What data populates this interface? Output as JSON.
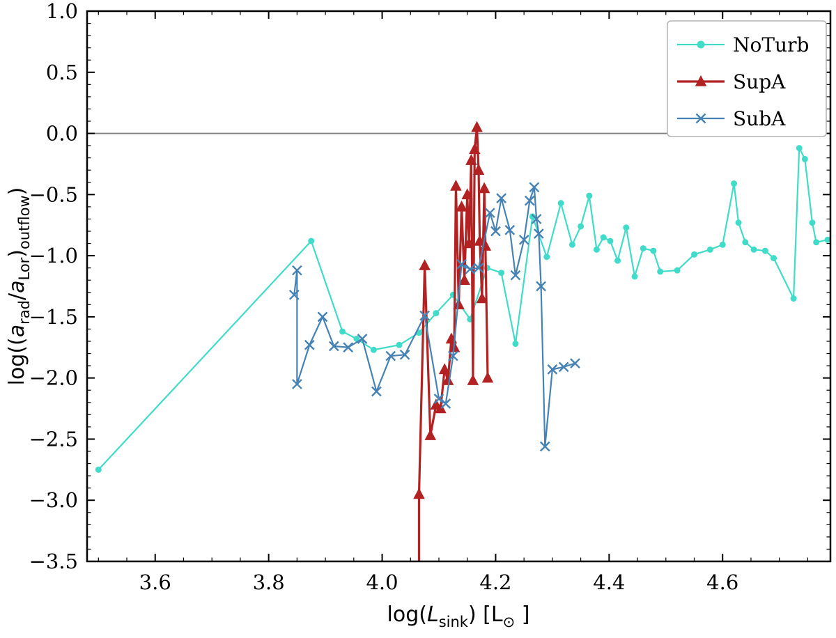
{
  "figure": {
    "background": "#ffffff",
    "frame_color": "#000000",
    "zero_line_color": "#808080"
  },
  "axes": {
    "x_label_parts": [
      "log(",
      "L",
      "sink",
      ") [L",
      "⊙",
      " ]"
    ],
    "y_label_parts": [
      "log((",
      "a",
      "rad",
      "/",
      "a",
      "Lor",
      ")",
      "outflow",
      ")"
    ],
    "x_ticks": [
      "3.6",
      "3.8",
      "4.0",
      "4.2",
      "4.4",
      "4.6"
    ],
    "y_ticks": [
      "1.0",
      "0.5",
      "0.0",
      "−0.5",
      "−1.0",
      "−1.5",
      "−2.0",
      "−2.5",
      "−3.0",
      "−3.5"
    ]
  },
  "legend": {
    "position": "upper right",
    "items": [
      {
        "label": "NoTurb",
        "color": "#40dcc9",
        "marker": "circle"
      },
      {
        "label": "SupA",
        "color": "#b22222",
        "marker": "triangle"
      },
      {
        "label": "SubA",
        "color": "#4682b4",
        "marker": "x"
      }
    ]
  },
  "chart_data": {
    "type": "line",
    "title": "",
    "xlabel": "log(L_sink) [L_sun]",
    "ylabel": "log((a_rad/a_Lor)_outflow)",
    "xlim": [
      3.48,
      4.79
    ],
    "ylim": [
      -3.5,
      1.0
    ],
    "grid": false,
    "legend_position": "upper right",
    "reference_line_y": 0.0,
    "x_tick_values": [
      3.6,
      3.8,
      4.0,
      4.2,
      4.4,
      4.6
    ],
    "y_tick_values": [
      1.0,
      0.5,
      0.0,
      -0.5,
      -1.0,
      -1.5,
      -2.0,
      -2.5,
      -3.0,
      -3.5
    ],
    "series": [
      {
        "name": "NoTurb",
        "color": "#40dcc9",
        "marker": "circle",
        "line_width": 2.2,
        "marker_size": 4.5,
        "points": [
          [
            3.5,
            -2.75
          ],
          [
            3.875,
            -0.88
          ],
          [
            3.93,
            -1.62
          ],
          [
            3.955,
            -1.68
          ],
          [
            3.985,
            -1.77
          ],
          [
            4.03,
            -1.73
          ],
          [
            4.065,
            -1.63
          ],
          [
            4.095,
            -1.47
          ],
          [
            4.125,
            -1.32
          ],
          [
            4.155,
            -1.52
          ],
          [
            4.185,
            -1.1
          ],
          [
            4.21,
            -1.14
          ],
          [
            4.235,
            -1.72
          ],
          [
            4.265,
            -0.68
          ],
          [
            4.29,
            -1.01
          ],
          [
            4.315,
            -0.57
          ],
          [
            4.335,
            -0.91
          ],
          [
            4.35,
            -0.76
          ],
          [
            4.365,
            -0.51
          ],
          [
            4.378,
            -0.95
          ],
          [
            4.39,
            -0.85
          ],
          [
            4.402,
            -0.88
          ],
          [
            4.415,
            -1.04
          ],
          [
            4.43,
            -0.77
          ],
          [
            4.445,
            -1.17
          ],
          [
            4.46,
            -0.94
          ],
          [
            4.478,
            -0.96
          ],
          [
            4.49,
            -1.13
          ],
          [
            4.52,
            -1.12
          ],
          [
            4.55,
            -0.99
          ],
          [
            4.578,
            -0.95
          ],
          [
            4.6,
            -0.91
          ],
          [
            4.62,
            -0.41
          ],
          [
            4.628,
            -0.73
          ],
          [
            4.64,
            -0.89
          ],
          [
            4.655,
            -0.95
          ],
          [
            4.675,
            -0.96
          ],
          [
            4.69,
            -1.02
          ],
          [
            4.725,
            -1.35
          ],
          [
            4.735,
            -0.12
          ],
          [
            4.745,
            -0.21
          ],
          [
            4.758,
            -0.73
          ],
          [
            4.765,
            -0.89
          ],
          [
            4.785,
            -0.87
          ]
        ]
      },
      {
        "name": "SupA",
        "color": "#b22222",
        "marker": "triangle",
        "line_width": 3.2,
        "marker_size": 9,
        "line_start": [
          [
            4.065,
            -3.6
          ]
        ],
        "points": [
          [
            4.065,
            -2.95
          ],
          [
            4.075,
            -1.08
          ],
          [
            4.085,
            -2.47
          ],
          [
            4.095,
            -2.22
          ],
          [
            4.103,
            -2.25
          ],
          [
            4.11,
            -1.93
          ],
          [
            4.116,
            -2.02
          ],
          [
            4.122,
            -1.68
          ],
          [
            4.127,
            -1.75
          ],
          [
            4.13,
            -0.43
          ],
          [
            4.135,
            -1.4
          ],
          [
            4.14,
            -0.6
          ],
          [
            4.145,
            -1.2
          ],
          [
            4.15,
            -0.5
          ],
          [
            4.153,
            -0.9
          ],
          [
            4.157,
            -0.22
          ],
          [
            4.16,
            -2.02
          ],
          [
            4.163,
            -0.13
          ],
          [
            4.167,
            0.05
          ],
          [
            4.17,
            -0.3
          ],
          [
            4.172,
            -0.88
          ],
          [
            4.176,
            -1.35
          ],
          [
            4.18,
            -0.45
          ],
          [
            4.182,
            -0.92
          ],
          [
            4.186,
            -2.0
          ]
        ]
      },
      {
        "name": "SubA",
        "color": "#4682b4",
        "marker": "x",
        "line_width": 2.2,
        "marker_size": 6.5,
        "points": [
          [
            3.845,
            -1.32
          ],
          [
            3.85,
            -1.12
          ],
          [
            3.85,
            -2.05
          ],
          [
            3.872,
            -1.73
          ],
          [
            3.895,
            -1.5
          ],
          [
            3.915,
            -1.74
          ],
          [
            3.94,
            -1.75
          ],
          [
            3.965,
            -1.68
          ],
          [
            3.99,
            -2.11
          ],
          [
            4.015,
            -1.82
          ],
          [
            4.04,
            -1.81
          ],
          [
            4.075,
            -1.49
          ],
          [
            4.1,
            -2.17
          ],
          [
            4.112,
            -2.21
          ],
          [
            4.125,
            -1.82
          ],
          [
            4.14,
            -1.07
          ],
          [
            4.155,
            -1.11
          ],
          [
            4.17,
            -1.1
          ],
          [
            4.19,
            -0.65
          ],
          [
            4.2,
            -0.8
          ],
          [
            4.21,
            -0.53
          ],
          [
            4.225,
            -0.79
          ],
          [
            4.235,
            -1.16
          ],
          [
            4.25,
            -0.87
          ],
          [
            4.26,
            -0.55
          ],
          [
            4.268,
            -0.44
          ],
          [
            4.272,
            -0.7
          ],
          [
            4.276,
            -0.82
          ],
          [
            4.28,
            -1.25
          ],
          [
            4.287,
            -2.56
          ],
          [
            4.3,
            -1.93
          ],
          [
            4.32,
            -1.91
          ],
          [
            4.34,
            -1.88
          ]
        ]
      }
    ]
  }
}
